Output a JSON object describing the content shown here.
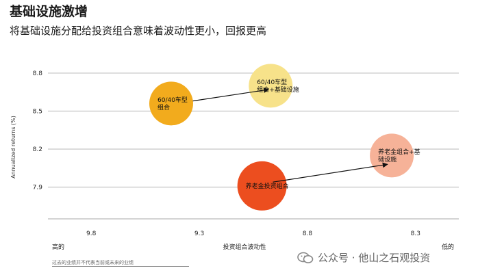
{
  "title": "基础设施激增",
  "subtitle": "将基础设施分配给投资组合意味着波动性更小，回报更高",
  "footnote": "过去的业绩并不代表当前或未来的业绩",
  "watermark": "公众号 · 他山之石观投资",
  "chart_data": {
    "type": "scatter",
    "ylabel": "Annualized returns (%)",
    "xlabel": "投资组合波动性",
    "x_low_label": "高的",
    "x_high_label": "低的",
    "x_reversed": true,
    "x_ticks": [
      "9.8",
      "9.3",
      "8.8",
      "8.3"
    ],
    "y_ticks": [
      "8.8",
      "8.5",
      "8.2",
      "7.9"
    ],
    "xlim": [
      10.0,
      8.1
    ],
    "ylim": [
      7.65,
      8.88
    ],
    "grid": "horizontal",
    "points": [
      {
        "label": "60/40车型组合",
        "x": 9.43,
        "y": 8.56,
        "size": 64,
        "color": "#f2ab1d"
      },
      {
        "label": "60/40车型组合+基础设施",
        "x": 8.97,
        "y": 8.7,
        "size": 64,
        "color": "#f7e28a"
      },
      {
        "label": "养老金投资组合",
        "x": 9.01,
        "y": 7.91,
        "size": 72,
        "color": "#ec4e1f"
      },
      {
        "label": "养老金组合+基础设施",
        "x": 8.41,
        "y": 8.15,
        "size": 64,
        "color": "#f6b298"
      }
    ],
    "arrows": [
      {
        "from": [
          9.33,
          8.58
        ],
        "to": [
          8.98,
          8.67
        ]
      },
      {
        "from": [
          8.96,
          7.94
        ],
        "to": [
          8.43,
          8.08
        ]
      }
    ]
  }
}
